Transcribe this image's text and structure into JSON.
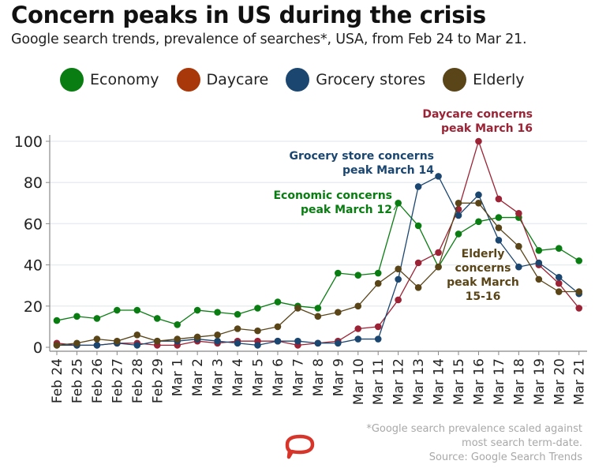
{
  "header": {
    "title": "Concern peaks in US during the crisis",
    "subtitle": "Google search trends, prevalence of searches*, USA, from Feb 24 to Mar 21."
  },
  "legend": [
    {
      "label": "Economy",
      "color": "#0a7d12"
    },
    {
      "label": "Daycare",
      "color": "#a8380a"
    },
    {
      "label": "Grocery stores",
      "color": "#1a4670"
    },
    {
      "label": "Elderly",
      "color": "#5a4519"
    }
  ],
  "footer": {
    "note_line1": "*Google search prevalence scaled against",
    "note_line2": "most search term-date.",
    "source": "Source: Google Search Trends",
    "logo_icon": "speech-bubble-icon",
    "logo_color": "#d8352a"
  },
  "chart_data": {
    "type": "line",
    "title": "Concern peaks in US during the crisis",
    "xlabel": "",
    "ylabel": "",
    "ylim": [
      0,
      100
    ],
    "yticks": [
      0,
      20,
      40,
      60,
      80,
      100
    ],
    "grid": true,
    "legend_position": "top",
    "x": [
      "Feb 24",
      "Feb 25",
      "Feb 26",
      "Feb 27",
      "Feb 28",
      "Feb 29",
      "Mar 1",
      "Mar 2",
      "Mar 3",
      "Mar 4",
      "Mar 5",
      "Mar 6",
      "Mar 7",
      "Mar 8",
      "Mar 9",
      "Mar 10",
      "Mar 11",
      "Mar 12",
      "Mar 13",
      "Mar 14",
      "Mar 15",
      "Mar 16",
      "Mar 17",
      "Mar 18",
      "Mar 19",
      "Mar 20",
      "Mar 21"
    ],
    "series": [
      {
        "name": "Economy",
        "color": "#0a7d12",
        "values": [
          13,
          15,
          14,
          18,
          18,
          14,
          11,
          18,
          17,
          16,
          19,
          22,
          20,
          19,
          36,
          35,
          36,
          70,
          59,
          39,
          55,
          61,
          63,
          63,
          47,
          48,
          42
        ]
      },
      {
        "name": "Daycare",
        "color": "#9b2335",
        "values": [
          2,
          1,
          1,
          2,
          2,
          1,
          1,
          3,
          2,
          3,
          3,
          3,
          1,
          2,
          3,
          9,
          10,
          23,
          41,
          46,
          67,
          100,
          72,
          65,
          40,
          31,
          19
        ]
      },
      {
        "name": "Grocery stores",
        "color": "#1a4670",
        "values": [
          1,
          1,
          1,
          2,
          1,
          3,
          3,
          4,
          3,
          2,
          1,
          3,
          3,
          2,
          2,
          4,
          4,
          33,
          78,
          83,
          64,
          74,
          52,
          39,
          41,
          34,
          26
        ]
      },
      {
        "name": "Elderly",
        "color": "#5a4519",
        "values": [
          1,
          2,
          4,
          3,
          6,
          3,
          4,
          5,
          6,
          9,
          8,
          10,
          19,
          15,
          17,
          20,
          31,
          38,
          29,
          39,
          70,
          70,
          58,
          49,
          33,
          27,
          27
        ]
      }
    ],
    "annotations": [
      {
        "series": "Daycare",
        "lines": [
          "Daycare concerns",
          "peak March  16"
        ],
        "color": "#9b2335"
      },
      {
        "series": "Grocery stores",
        "lines": [
          "Grocery store concerns",
          "peak March 14"
        ],
        "color": "#1a4670"
      },
      {
        "series": "Economy",
        "lines": [
          "Economic concerns",
          "peak March 12"
        ],
        "color": "#0a7d12"
      },
      {
        "series": "Elderly",
        "lines": [
          "Elderly",
          "concerns",
          "peak March",
          "15-16"
        ],
        "color": "#5a4519"
      }
    ]
  }
}
